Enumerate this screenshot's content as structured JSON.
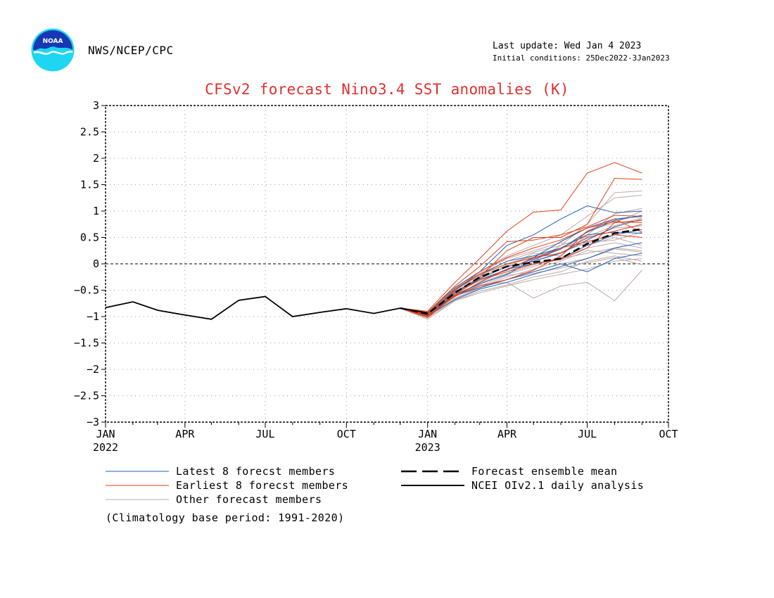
{
  "header": {
    "org": "NWS/NCEP/CPC",
    "last_update": "Last update: Wed Jan  4 2023",
    "initial_conditions": "Initial conditions: 25Dec2022-3Jan2023",
    "logo_text": "NOAA"
  },
  "footer": {
    "climatology": "(Climatology base period: 1991-2020)"
  },
  "colors": {
    "title": "#e03030",
    "latest": "#2060b0",
    "earliest": "#e04018",
    "other": "#c0a8a8",
    "mean": "#000000",
    "analysis": "#000000"
  },
  "chart_data": {
    "type": "line",
    "title": "CFSv2 forecast Nino3.4 SST anomalies (K)",
    "ylim": [
      -3,
      3
    ],
    "yticks": [
      "3",
      "2.5",
      "2",
      "1.5",
      "1",
      "0.5",
      "0",
      "-0.5",
      "-1",
      "-1.5",
      "-2",
      "-2.5",
      "-3"
    ],
    "xlim": [
      "2022-01-01",
      "2023-10-01"
    ],
    "xticks": [
      {
        "month": "JAN",
        "year": "2022"
      },
      {
        "month": "APR",
        "year": ""
      },
      {
        "month": "JUL",
        "year": ""
      },
      {
        "month": "OCT",
        "year": ""
      },
      {
        "month": "JAN",
        "year": "2023"
      },
      {
        "month": "APR",
        "year": ""
      },
      {
        "month": "JUL",
        "year": ""
      },
      {
        "month": "OCT",
        "year": ""
      }
    ],
    "grid": "dotted",
    "zero_line": "dashed",
    "legend": {
      "position": "bottom",
      "items": [
        {
          "label": "Latest 8 forecst members",
          "style": "latest"
        },
        {
          "label": "Forecast ensemble mean",
          "style": "mean"
        },
        {
          "label": "Earliest 8 forecst members",
          "style": "earliest"
        },
        {
          "label": "NCEI OIv2.1 daily analysis",
          "style": "analysis"
        },
        {
          "label": "Other forecast members",
          "style": "other"
        }
      ]
    },
    "analysis": {
      "name": "NCEI OIv2.1 daily analysis",
      "x": [
        "2022-01-01",
        "2022-02-01",
        "2022-03-01",
        "2022-04-01",
        "2022-05-01",
        "2022-06-01",
        "2022-07-01",
        "2022-08-01",
        "2022-09-01",
        "2022-10-01",
        "2022-11-01",
        "2022-12-01",
        "2023-01-01"
      ],
      "y": [
        -0.83,
        -0.72,
        -0.88,
        -0.97,
        -1.05,
        -0.69,
        -0.62,
        -1.0,
        -0.92,
        -0.85,
        -0.94,
        -0.84,
        -0.93
      ]
    },
    "forecast_x": [
      "2022-12-01",
      "2023-01-01",
      "2023-02-01",
      "2023-03-01",
      "2023-04-01",
      "2023-05-01",
      "2023-06-01",
      "2023-07-01",
      "2023-08-01",
      "2023-09-01"
    ],
    "ensemble_mean": {
      "name": "Forecast ensemble mean",
      "y": [
        -0.84,
        -0.95,
        -0.55,
        -0.25,
        -0.05,
        0.03,
        0.1,
        0.38,
        0.58,
        0.66
      ]
    },
    "latest_members": [
      [
        -0.84,
        -0.95,
        -0.55,
        -0.28,
        -0.05,
        0.05,
        0.2,
        0.45,
        0.7,
        0.85
      ],
      [
        -0.84,
        -0.98,
        -0.62,
        -0.35,
        -0.1,
        0.0,
        0.1,
        0.35,
        0.55,
        0.65
      ],
      [
        -0.84,
        -0.92,
        -0.45,
        -0.15,
        0.35,
        0.55,
        0.85,
        1.1,
        0.97,
        1.0
      ],
      [
        -0.84,
        -0.95,
        -0.6,
        -0.45,
        -0.3,
        -0.15,
        0.0,
        -0.15,
        0.1,
        0.2
      ],
      [
        -0.84,
        -0.96,
        -0.58,
        -0.38,
        -0.2,
        0.08,
        0.28,
        0.6,
        0.82,
        0.92
      ],
      [
        -0.84,
        -0.93,
        -0.5,
        -0.2,
        0.05,
        0.15,
        0.3,
        0.55,
        0.6,
        0.58
      ],
      [
        -0.84,
        -0.99,
        -0.68,
        -0.48,
        -0.35,
        -0.2,
        -0.05,
        0.1,
        0.3,
        0.4
      ],
      [
        -0.84,
        -0.94,
        -0.52,
        -0.3,
        -0.12,
        0.12,
        0.42,
        0.68,
        0.85,
        0.9
      ]
    ],
    "earliest_members": [
      [
        -0.84,
        -0.9,
        -0.35,
        0.1,
        0.62,
        0.98,
        1.02,
        1.72,
        1.92,
        1.72
      ],
      [
        -0.84,
        -0.95,
        -0.55,
        -0.25,
        0.25,
        0.5,
        0.5,
        0.75,
        1.62,
        1.6
      ],
      [
        -0.84,
        -0.92,
        -0.42,
        -0.05,
        0.42,
        0.45,
        0.55,
        0.7,
        0.92,
        0.9
      ],
      [
        -0.84,
        -1.0,
        -0.58,
        -0.3,
        -0.15,
        0.0,
        0.08,
        0.3,
        0.78,
        0.82
      ],
      [
        -0.84,
        -0.96,
        -0.48,
        -0.2,
        0.0,
        0.12,
        0.2,
        0.5,
        0.62,
        0.75
      ],
      [
        -0.84,
        -1.02,
        -0.6,
        -0.42,
        -0.3,
        -0.12,
        0.15,
        0.62,
        0.85,
        0.6
      ],
      [
        -0.84,
        -0.94,
        -0.5,
        -0.15,
        0.12,
        0.3,
        0.45,
        0.68,
        0.8,
        0.78
      ],
      [
        -0.84,
        -0.98,
        -0.62,
        -0.35,
        -0.1,
        0.1,
        0.3,
        0.42,
        0.55,
        0.5
      ]
    ],
    "other_members": [
      [
        -0.84,
        -1.05,
        -0.7,
        -0.55,
        -0.42,
        -0.3,
        -0.2,
        -0.1,
        0.05,
        0.1
      ],
      [
        -0.84,
        -1.0,
        -0.6,
        -0.4,
        -0.35,
        -0.65,
        -0.42,
        -0.35,
        -0.7,
        -0.12
      ],
      [
        -0.84,
        -0.96,
        -0.55,
        -0.32,
        -0.15,
        0.05,
        0.35,
        0.75,
        1.35,
        1.38
      ],
      [
        -0.84,
        -0.92,
        -0.45,
        -0.15,
        0.15,
        0.35,
        0.55,
        0.9,
        1.25,
        1.3
      ],
      [
        -0.84,
        -0.99,
        -0.65,
        -0.45,
        -0.25,
        -0.1,
        0.05,
        0.25,
        0.2,
        0.15
      ],
      [
        -0.84,
        -0.97,
        -0.6,
        -0.38,
        -0.2,
        -0.05,
        0.1,
        0.2,
        0.3,
        0.25
      ],
      [
        -0.84,
        -0.94,
        -0.5,
        -0.22,
        0.0,
        0.15,
        0.3,
        0.48,
        0.68,
        0.72
      ],
      [
        -0.84,
        -1.02,
        -0.7,
        -0.52,
        -0.4,
        -0.25,
        -0.15,
        0.05,
        0.15,
        0.05
      ],
      [
        -0.84,
        -0.95,
        -0.52,
        -0.28,
        -0.05,
        0.2,
        0.15,
        0.55,
        0.95,
        1.05
      ],
      [
        -0.84,
        -0.93,
        -0.48,
        -0.18,
        0.1,
        0.25,
        0.4,
        0.35,
        0.5,
        0.35
      ],
      [
        -0.84,
        -0.98,
        -0.62,
        -0.42,
        -0.22,
        -0.15,
        0.0,
        0.1,
        0.28,
        0.22
      ],
      [
        -0.84,
        -0.96,
        -0.56,
        -0.3,
        -0.1,
        0.05,
        0.22,
        0.4,
        0.45,
        0.6
      ],
      [
        -0.84,
        -1.0,
        -0.66,
        -0.46,
        -0.3,
        -0.18,
        -0.08,
        0.02,
        0.12,
        -0.02
      ],
      [
        -0.84,
        -0.95,
        -0.54,
        -0.26,
        -0.02,
        0.12,
        0.28,
        0.62,
        0.78,
        1.0
      ],
      [
        -0.84,
        -0.97,
        -0.6,
        -0.36,
        -0.18,
        -0.02,
        0.12,
        0.3,
        0.4,
        0.3
      ],
      [
        -0.84,
        -0.93,
        -0.46,
        -0.2,
        0.05,
        0.22,
        0.35,
        0.52,
        0.72,
        0.88
      ]
    ]
  }
}
